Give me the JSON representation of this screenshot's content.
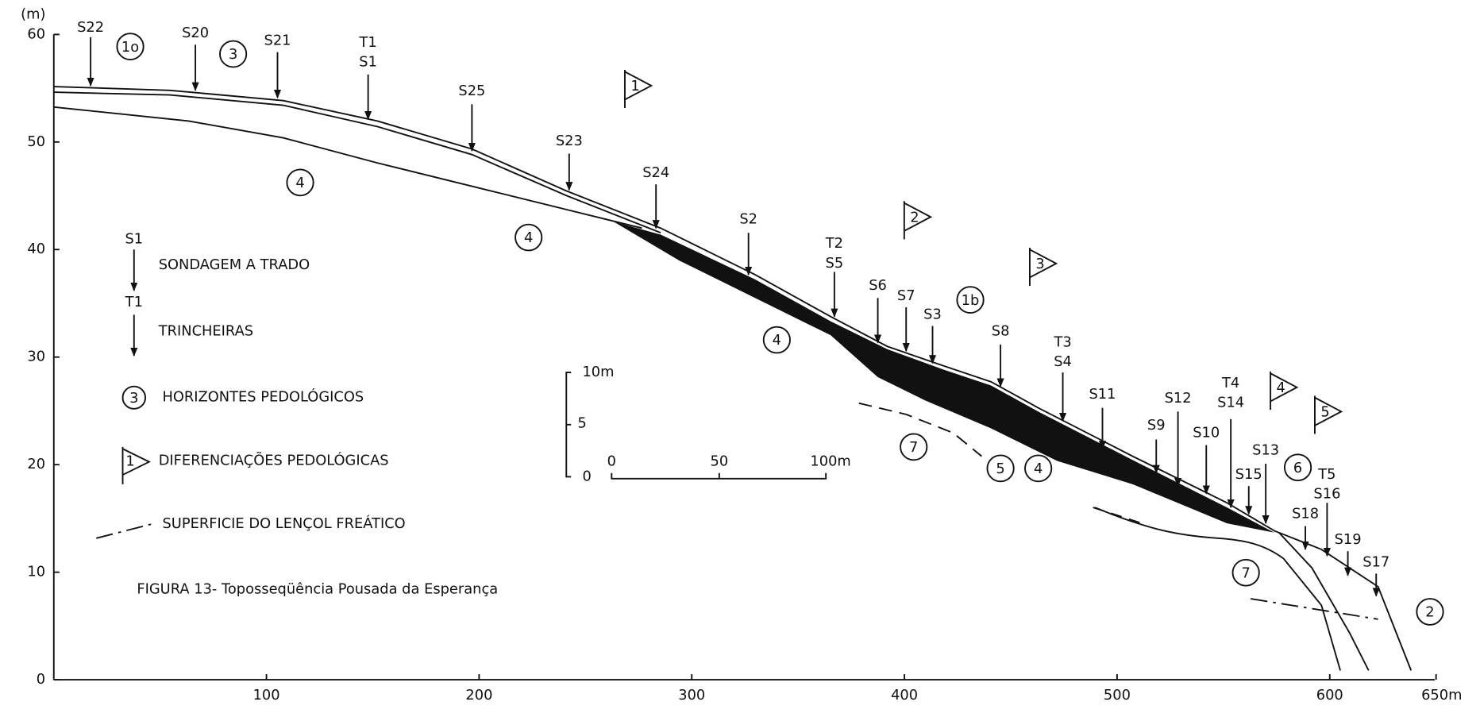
{
  "axis": {
    "y_unit": "(m)",
    "yticks": [
      0,
      10,
      20,
      30,
      40,
      50,
      60
    ],
    "xticks": [
      100,
      200,
      300,
      400,
      500,
      600,
      {
        "value": 650,
        "label": "650m"
      }
    ]
  },
  "probes": [
    [
      "S22"
    ],
    [
      "S20"
    ],
    [
      "S21"
    ],
    [
      "T1",
      "S1"
    ],
    [
      "S25"
    ],
    [
      "S23"
    ],
    [
      "S24"
    ],
    [
      "S2"
    ],
    [
      "T2",
      "S5"
    ],
    [
      "S6"
    ],
    [
      "S7"
    ],
    [
      "S3"
    ],
    [
      "S8"
    ],
    [
      "T3",
      "S4"
    ],
    [
      "S11"
    ],
    [
      "S12"
    ],
    [
      "S9"
    ],
    [
      "S10"
    ],
    [
      "T4",
      "S14"
    ],
    [
      "S15"
    ],
    [
      "S13"
    ],
    [
      "S18"
    ],
    [
      "T5",
      "S16"
    ],
    [
      "S19"
    ],
    [
      "S17"
    ]
  ],
  "horizons": [
    "1o",
    "3",
    "4",
    "4",
    "4",
    "1b",
    "7",
    "5",
    "4",
    "6",
    "7",
    "2"
  ],
  "differentiations": [
    "1",
    "2",
    "3",
    "4",
    "5"
  ],
  "legend": {
    "probe_symbol": "S1",
    "probe_text": "SONDAGEM A TRADO",
    "trench_symbol": "T1",
    "trench_text": "TRINCHEIRAS",
    "horizon_symbol": "3",
    "horizon_text": "HORIZONTES PEDOLÓGICOS",
    "diff_symbol": "1",
    "diff_text": "DIFERENCIAÇÕES PEDOLÓGICAS",
    "water_text": "SUPERFICIE DO LENÇOL FREÁTICO"
  },
  "scale": {
    "vertical": [
      "10m",
      "5",
      "0"
    ],
    "horizontal": [
      "0",
      "50",
      "100m"
    ]
  },
  "caption": "FIGURA 13- Topossеqüência Pousada da Esperança"
}
